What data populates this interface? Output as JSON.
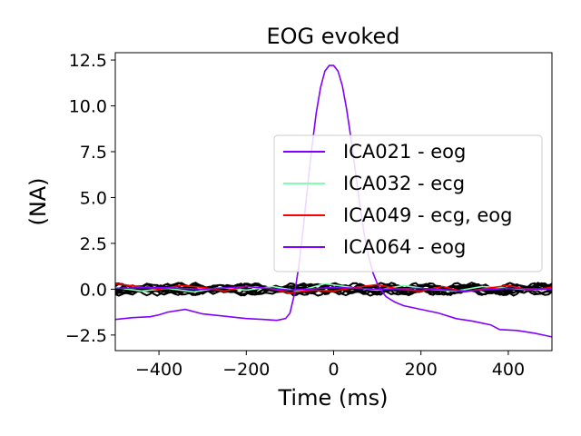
{
  "chart_data": {
    "type": "line",
    "title": "EOG evoked",
    "xlabel": "Time (ms)",
    "ylabel": "(NA)",
    "xlim": [
      -500,
      500
    ],
    "ylim": [
      -3.35,
      12.9
    ],
    "xticks": [
      -400,
      -200,
      0,
      200,
      400
    ],
    "xtick_labels": [
      "−400",
      "−200",
      "0",
      "200",
      "400"
    ],
    "yticks": [
      -2.5,
      0.0,
      2.5,
      5.0,
      7.5,
      10.0,
      12.5
    ],
    "ytick_labels": [
      "−2.5",
      "0.0",
      "2.5",
      "5.0",
      "7.5",
      "10.0",
      "12.5"
    ],
    "legend_position": "center-right",
    "series": [
      {
        "name": "ICA021 - eog",
        "color": "#8000ff",
        "x": [
          -500,
          -460,
          -420,
          -400,
          -380,
          -340,
          -300,
          -260,
          -220,
          -200,
          -160,
          -130,
          -110,
          -100,
          -90,
          -80,
          -70,
          -60,
          -50,
          -40,
          -30,
          -20,
          -10,
          0,
          10,
          20,
          30,
          40,
          50,
          60,
          70,
          80,
          90,
          100,
          110,
          120,
          140,
          160,
          200,
          240,
          280,
          320,
          360,
          380,
          420,
          460,
          500
        ],
        "y": [
          -1.65,
          -1.55,
          -1.5,
          -1.4,
          -1.25,
          -1.1,
          -1.35,
          -1.45,
          -1.55,
          -1.6,
          -1.65,
          -1.7,
          -1.6,
          -1.3,
          -0.3,
          1.2,
          3.2,
          5.5,
          7.7,
          9.6,
          11.0,
          11.9,
          12.2,
          12.2,
          11.9,
          11.1,
          9.8,
          8.2,
          6.4,
          4.6,
          3.0,
          1.8,
          0.9,
          0.3,
          -0.1,
          -0.4,
          -0.7,
          -0.9,
          -1.1,
          -1.3,
          -1.6,
          -1.75,
          -1.95,
          -2.2,
          -2.25,
          -2.4,
          -2.6
        ]
      },
      {
        "name": "ICA032 - ecg",
        "color": "#80ffb4",
        "x": [
          -500,
          -440,
          -380,
          -320,
          -260,
          -200,
          -140,
          -80,
          -20,
          40,
          100,
          160,
          220,
          280,
          340,
          400,
          460,
          500
        ],
        "y": [
          0.1,
          -0.1,
          0.05,
          -0.15,
          0.1,
          -0.05,
          0.15,
          -0.1,
          0.3,
          0.1,
          -0.05,
          0.2,
          0.0,
          -0.1,
          0.15,
          0.05,
          -0.05,
          0.1
        ]
      },
      {
        "name": "ICA049 - ecg, eog",
        "color": "#ff0000",
        "x": [
          -500,
          -450,
          -400,
          -350,
          -300,
          -250,
          -200,
          -150,
          -100,
          -50,
          0,
          50,
          100,
          150,
          200,
          250,
          300,
          350,
          400,
          450,
          500
        ],
        "y": [
          0.3,
          0.15,
          0.0,
          0.2,
          0.1,
          -0.1,
          0.15,
          0.05,
          -0.2,
          -0.05,
          -0.1,
          0.1,
          0.25,
          0.0,
          -0.1,
          0.15,
          -0.15,
          0.05,
          0.2,
          -0.05,
          0.1
        ]
      },
      {
        "name": "ICA064 - eog",
        "color": "#8000ff",
        "x": [
          -500,
          -400,
          -300,
          -200,
          -100,
          0,
          100,
          200,
          300,
          400,
          500
        ],
        "y": [
          0.05,
          0.1,
          0.0,
          0.15,
          -0.05,
          0.1,
          0.0,
          0.05,
          -0.1,
          0.05,
          0.0
        ]
      }
    ],
    "background_components": {
      "color": "#000000",
      "count": 10,
      "note_free": true
    }
  }
}
